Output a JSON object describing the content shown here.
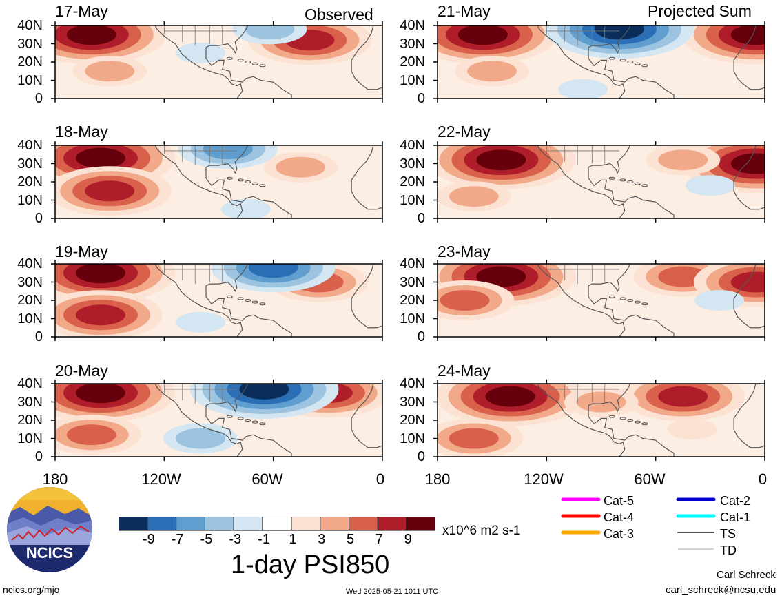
{
  "header": {
    "left_tag": "Observed",
    "right_tag": "Projected Sum"
  },
  "chart_data": {
    "type": "heatmap",
    "variable": "1-day PSI850",
    "units": "x10^6 m2 s-1",
    "longitude_ticks": [
      "180",
      "120W",
      "60W",
      "0"
    ],
    "latitude_ticks": [
      "40N",
      "30N",
      "20N",
      "10N",
      "0"
    ],
    "lon_range": [
      -180,
      0
    ],
    "lat_range": [
      0,
      40
    ],
    "panels": [
      {
        "date": "17-May",
        "kind": "observed",
        "anomalies": [
          {
            "lon": -160,
            "lat": 35,
            "value": 9
          },
          {
            "lon": -40,
            "lat": 32,
            "value": 7
          },
          {
            "lon": -150,
            "lat": 15,
            "value": 3
          },
          {
            "lon": -100,
            "lat": 25,
            "value": -1
          },
          {
            "lon": -62,
            "lat": 38,
            "value": -3
          }
        ]
      },
      {
        "date": "18-May",
        "kind": "observed",
        "anomalies": [
          {
            "lon": -155,
            "lat": 33,
            "value": 9
          },
          {
            "lon": -150,
            "lat": 15,
            "value": 7
          },
          {
            "lon": -45,
            "lat": 28,
            "value": 3
          },
          {
            "lon": -85,
            "lat": 38,
            "value": -5
          },
          {
            "lon": -75,
            "lat": 5,
            "value": -1
          }
        ]
      },
      {
        "date": "19-May",
        "kind": "observed",
        "anomalies": [
          {
            "lon": -155,
            "lat": 35,
            "value": 9
          },
          {
            "lon": -155,
            "lat": 12,
            "value": 7
          },
          {
            "lon": -35,
            "lat": 30,
            "value": 5
          },
          {
            "lon": -60,
            "lat": 38,
            "value": -7
          },
          {
            "lon": -100,
            "lat": 8,
            "value": -1
          }
        ]
      },
      {
        "date": "20-May",
        "kind": "observed",
        "anomalies": [
          {
            "lon": -155,
            "lat": 35,
            "value": 9
          },
          {
            "lon": -30,
            "lat": 35,
            "value": 7
          },
          {
            "lon": -65,
            "lat": 37,
            "value": -9
          },
          {
            "lon": -100,
            "lat": 10,
            "value": -3
          },
          {
            "lon": -160,
            "lat": 12,
            "value": 5
          }
        ]
      },
      {
        "date": "21-May",
        "kind": "projected",
        "anomalies": [
          {
            "lon": -155,
            "lat": 35,
            "value": 9
          },
          {
            "lon": -5,
            "lat": 35,
            "value": 9
          },
          {
            "lon": -80,
            "lat": 38,
            "value": -9
          },
          {
            "lon": -100,
            "lat": 5,
            "value": -1
          },
          {
            "lon": -150,
            "lat": 15,
            "value": 3
          }
        ]
      },
      {
        "date": "22-May",
        "kind": "projected",
        "anomalies": [
          {
            "lon": -145,
            "lat": 32,
            "value": 9
          },
          {
            "lon": -5,
            "lat": 30,
            "value": 9
          },
          {
            "lon": -45,
            "lat": 32,
            "value": 3
          },
          {
            "lon": -30,
            "lat": 18,
            "value": -1
          },
          {
            "lon": -160,
            "lat": 12,
            "value": 3
          }
        ]
      },
      {
        "date": "23-May",
        "kind": "projected",
        "anomalies": [
          {
            "lon": -145,
            "lat": 33,
            "value": 9
          },
          {
            "lon": -45,
            "lat": 33,
            "value": 5
          },
          {
            "lon": -5,
            "lat": 30,
            "value": 7
          },
          {
            "lon": -165,
            "lat": 20,
            "value": 5
          },
          {
            "lon": -25,
            "lat": 20,
            "value": -1
          }
        ]
      },
      {
        "date": "24-May",
        "kind": "projected",
        "anomalies": [
          {
            "lon": -140,
            "lat": 33,
            "value": 9
          },
          {
            "lon": -45,
            "lat": 33,
            "value": 7
          },
          {
            "lon": -160,
            "lat": 10,
            "value": 5
          },
          {
            "lon": -90,
            "lat": 30,
            "value": 3
          },
          {
            "lon": -40,
            "lat": 15,
            "value": 1
          }
        ]
      }
    ],
    "colorbar": {
      "levels": [
        -9,
        -7,
        -5,
        -3,
        -1,
        1,
        3,
        5,
        7,
        9
      ],
      "colors": [
        "#0b2d5a",
        "#2a6fb5",
        "#5f9ecf",
        "#9cc4e0",
        "#d4e6f1",
        "#ffffff",
        "#fbe2d3",
        "#f2a98a",
        "#d9614b",
        "#b01d2a",
        "#67000d"
      ]
    },
    "legend": [
      {
        "label": "Cat-5",
        "color": "#ff00ff"
      },
      {
        "label": "Cat-4",
        "color": "#ff0000"
      },
      {
        "label": "Cat-3",
        "color": "#ffa500"
      },
      {
        "label": "Cat-2",
        "color": "#0000cc"
      },
      {
        "label": "Cat-1",
        "color": "#00ffff"
      },
      {
        "label": "TS",
        "color": "#555555"
      },
      {
        "label": "TD",
        "color": "#aaaaaa"
      }
    ]
  },
  "footer": {
    "site": "ncics.org/mjo",
    "timestamp": "Wed 2025-05-21 1011 UTC",
    "author": "Carl Schreck",
    "email": "carl_schreck@ncsu.edu",
    "logo_text": "NCICS"
  }
}
